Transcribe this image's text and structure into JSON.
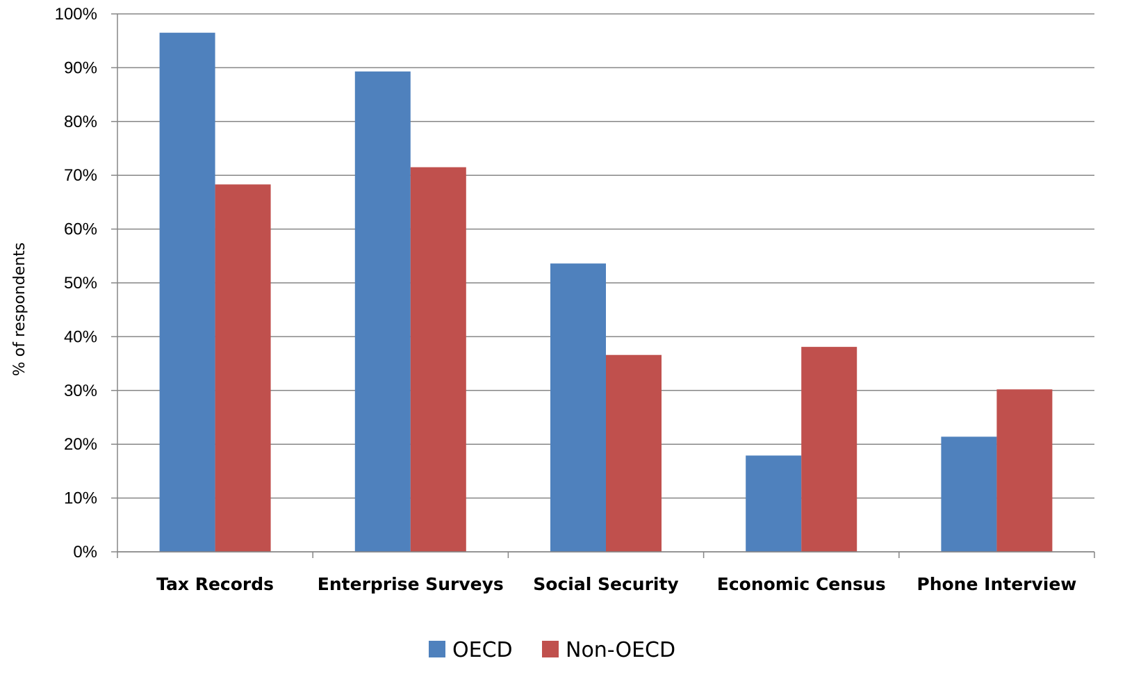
{
  "chart_data": {
    "type": "bar",
    "categories": [
      "Tax Records",
      "Enterprise Surveys",
      "Social Security",
      "Economic Census",
      "Phone Interview"
    ],
    "series": [
      {
        "name": "OECD",
        "color": "#4F81BD",
        "values": [
          96.5,
          89.3,
          53.6,
          17.9,
          21.4
        ]
      },
      {
        "name": "Non-OECD",
        "color": "#C0504D",
        "values": [
          68.3,
          71.5,
          36.6,
          38.1,
          30.2
        ]
      }
    ],
    "title": "",
    "xlabel": "",
    "ylabel": "% of respondents",
    "ylim": [
      0,
      100
    ],
    "yticks": [
      "0%",
      "10%",
      "20%",
      "30%",
      "40%",
      "50%",
      "60%",
      "70%",
      "80%",
      "90%",
      "100%"
    ],
    "grid": true,
    "legend_position": "bottom"
  }
}
